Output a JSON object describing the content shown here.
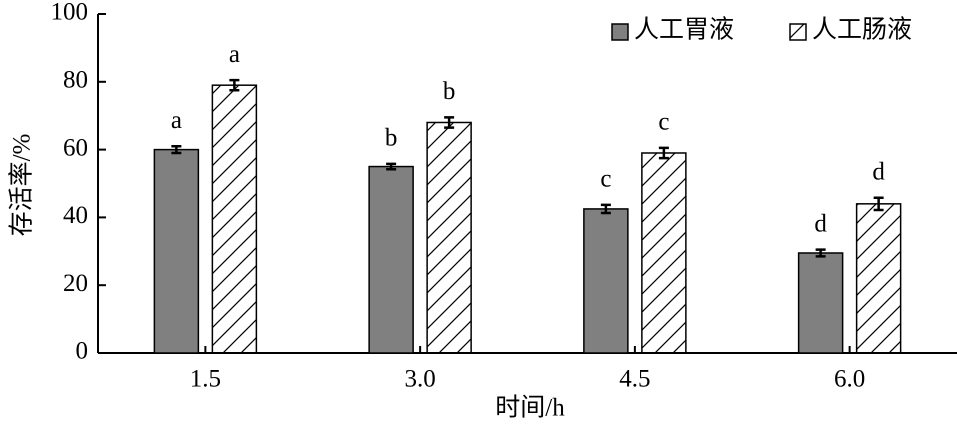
{
  "chart_data": {
    "type": "bar",
    "xlabel": "时间/h",
    "ylabel": "存活率/%",
    "categories": [
      "1.5",
      "3.0",
      "4.5",
      "6.0"
    ],
    "series": [
      {
        "name": "人工胃液",
        "color": "#808080",
        "pattern": "solid",
        "values": [
          60,
          55,
          42.5,
          29.5
        ],
        "errors": [
          1,
          0.8,
          1.2,
          1
        ],
        "labels": [
          "a",
          "b",
          "c",
          "d"
        ]
      },
      {
        "name": "人工肠液",
        "color": "#ffffff",
        "pattern": "hatch",
        "values": [
          79,
          68,
          59,
          44
        ],
        "errors": [
          1.5,
          1.5,
          1.5,
          1.8
        ],
        "labels": [
          "a",
          "b",
          "c",
          "d"
        ]
      }
    ],
    "ylim": [
      0,
      100
    ],
    "yticks": [
      0,
      20,
      40,
      60,
      80,
      100
    ],
    "legend": "upper right"
  }
}
